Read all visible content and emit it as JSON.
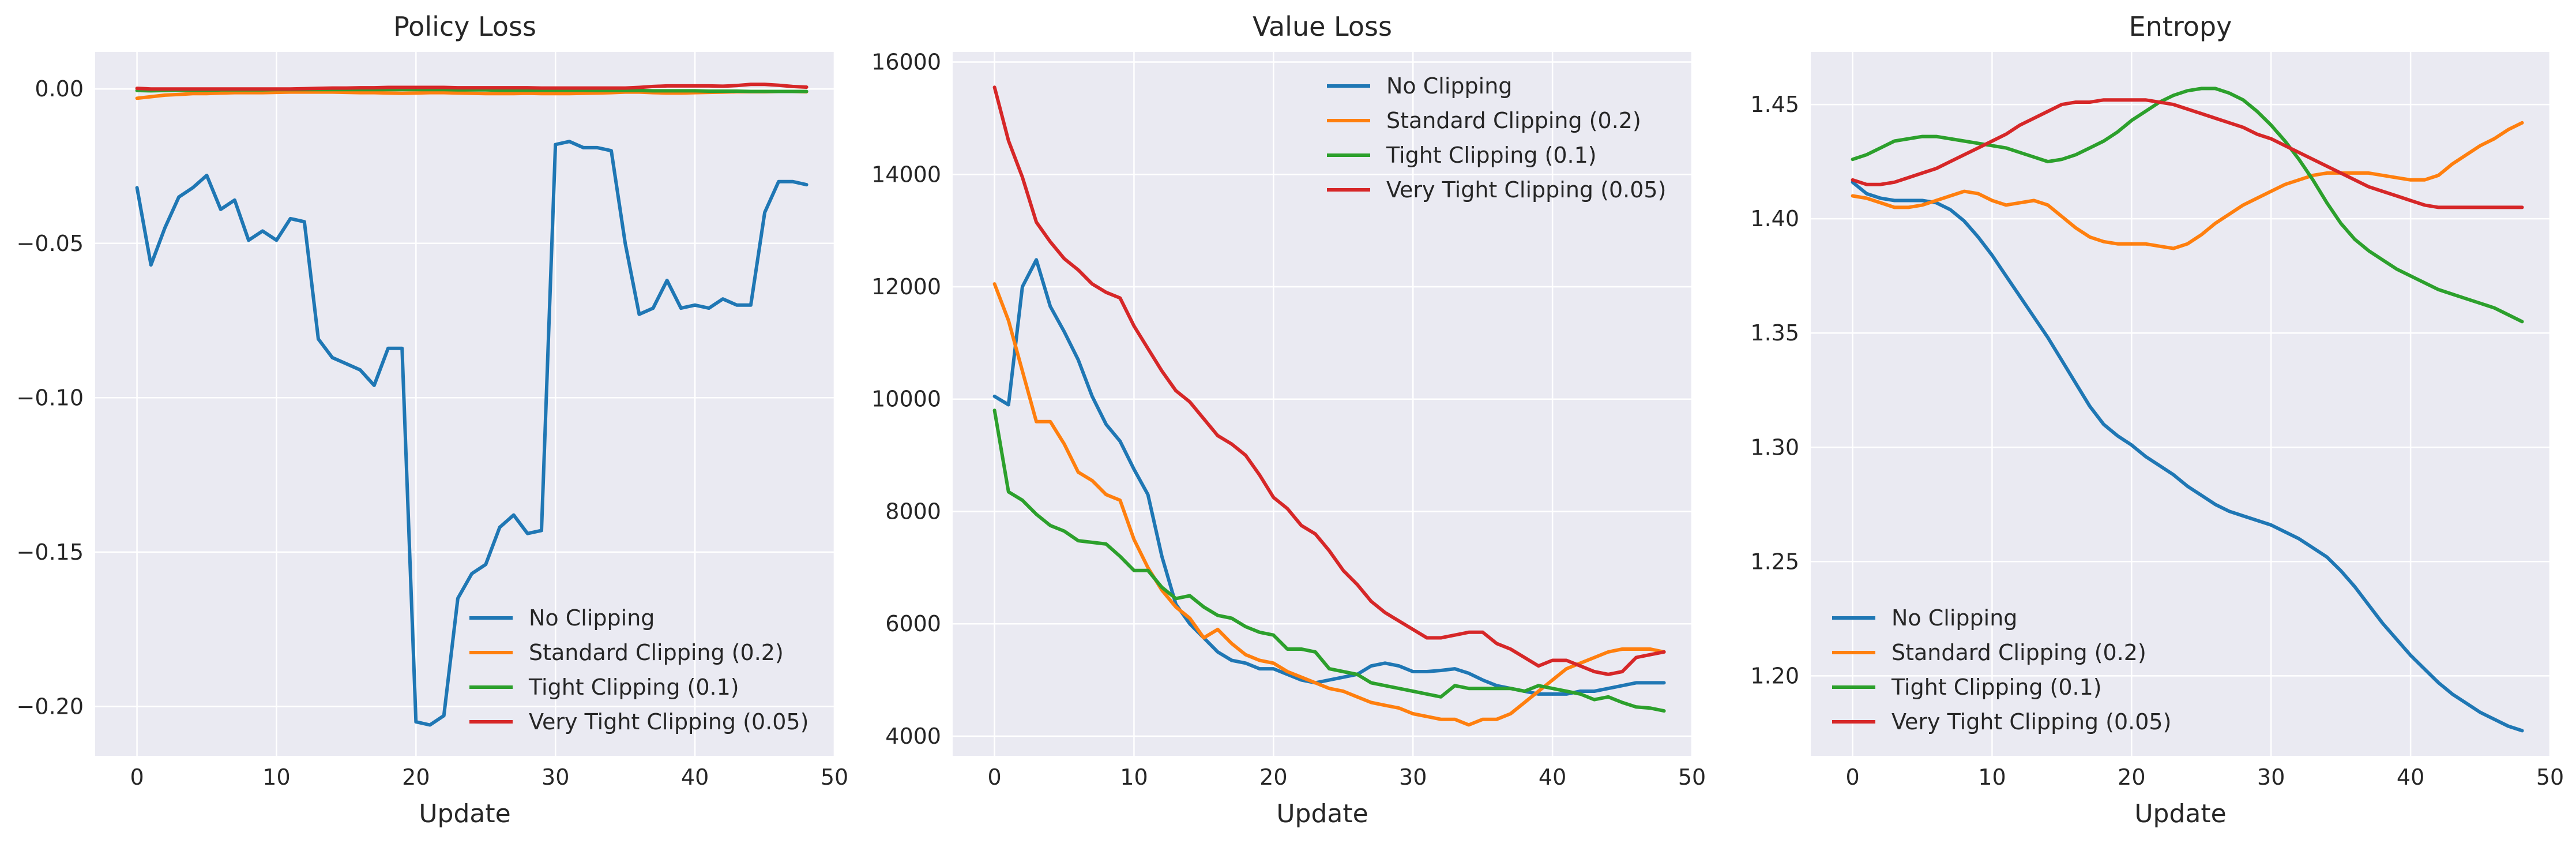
{
  "colors": {
    "plot_bg": "#EAEAF2",
    "grid": "#FFFFFF",
    "No Clipping": "#1F77B4",
    "Standard Clipping (0.2)": "#FF7F0E",
    "Tight Clipping (0.1)": "#2CA02C",
    "Very Tight Clipping (0.05)": "#D62728"
  },
  "chart_data": [
    {
      "type": "line",
      "title": "Policy Loss",
      "xlabel": "Update",
      "ylabel": "",
      "xlim": [
        -3,
        50
      ],
      "ylim": [
        -0.216,
        0.012
      ],
      "xticks": [
        0,
        10,
        20,
        30,
        40,
        50
      ],
      "yticks": [
        -0.2,
        -0.15,
        -0.1,
        -0.05,
        0.0
      ],
      "ytick_labels": [
        "−0.20",
        "−0.15",
        "−0.10",
        "−0.05",
        "0.00"
      ],
      "grid": true,
      "legend_position": "lower right",
      "series": [
        {
          "name": "No Clipping",
          "values": [
            -0.032,
            -0.057,
            -0.045,
            -0.035,
            -0.032,
            -0.028,
            -0.039,
            -0.036,
            -0.049,
            -0.046,
            -0.049,
            -0.042,
            -0.043,
            -0.081,
            -0.087,
            -0.089,
            -0.091,
            -0.096,
            -0.084,
            -0.084,
            -0.205,
            -0.206,
            -0.203,
            -0.165,
            -0.157,
            -0.154,
            -0.142,
            -0.138,
            -0.144,
            -0.143,
            -0.018,
            -0.017,
            -0.019,
            -0.019,
            -0.02,
            -0.05,
            -0.073,
            -0.071,
            -0.062,
            -0.071,
            -0.07,
            -0.071,
            -0.068,
            -0.07,
            -0.07,
            -0.04,
            -0.03,
            -0.03,
            -0.031
          ]
        },
        {
          "name": "Standard Clipping (0.2)",
          "values": [
            -0.003,
            -0.0025,
            -0.002,
            -0.0018,
            -0.0015,
            -0.0015,
            -0.0013,
            -0.0012,
            -0.0012,
            -0.0012,
            -0.0011,
            -0.001,
            -0.001,
            -0.001,
            -0.001,
            -0.0011,
            -0.0012,
            -0.0012,
            -0.0013,
            -0.0014,
            -0.0013,
            -0.0012,
            -0.0012,
            -0.0013,
            -0.0014,
            -0.0015,
            -0.0015,
            -0.0015,
            -0.0014,
            -0.0015,
            -0.0015,
            -0.0015,
            -0.0014,
            -0.0013,
            -0.0012,
            -0.001,
            -0.001,
            -0.0012,
            -0.0013,
            -0.0013,
            -0.0012,
            -0.0011,
            -0.001,
            -0.0009,
            -0.0009,
            -0.0009,
            -0.0008,
            -0.0008,
            -0.0009
          ]
        },
        {
          "name": "Tight Clipping (0.1)",
          "values": [
            -0.0005,
            -0.0006,
            -0.0005,
            -0.0004,
            -0.0004,
            -0.0004,
            -0.0003,
            -0.0003,
            -0.0003,
            -0.0003,
            -0.0002,
            -0.0002,
            -0.0002,
            -0.0002,
            -0.0002,
            -0.0002,
            -0.0002,
            -0.0002,
            -0.0002,
            -0.0002,
            -0.0002,
            -0.0002,
            -0.0002,
            -0.0003,
            -0.0003,
            -0.0003,
            -0.0004,
            -0.0004,
            -0.0004,
            -0.0004,
            -0.0004,
            -0.0004,
            -0.0004,
            -0.0005,
            -0.0005,
            -0.0005,
            -0.0005,
            -0.0006,
            -0.0006,
            -0.0006,
            -0.0006,
            -0.0007,
            -0.0007,
            -0.0007,
            -0.0008,
            -0.0008,
            -0.0008,
            -0.0008,
            -0.0008
          ]
        },
        {
          "name": "Very Tight Clipping (0.05)",
          "values": [
            0.0002,
            0.0,
            0.0,
            0.0,
            0.0,
            0.0,
            0.0,
            0.0,
            0.0,
            0.0,
            0.0,
            0.0,
            0.0001,
            0.0002,
            0.0003,
            0.0003,
            0.0004,
            0.0004,
            0.0005,
            0.0005,
            0.0005,
            0.0005,
            0.0005,
            0.0004,
            0.0004,
            0.0004,
            0.0004,
            0.0004,
            0.0004,
            0.0003,
            0.0003,
            0.0003,
            0.0003,
            0.0003,
            0.0003,
            0.0003,
            0.0005,
            0.0008,
            0.001,
            0.001,
            0.001,
            0.001,
            0.0009,
            0.0011,
            0.0015,
            0.0015,
            0.0012,
            0.0008,
            0.0006
          ]
        }
      ]
    },
    {
      "type": "line",
      "title": "Value Loss",
      "xlabel": "Update",
      "ylabel": "",
      "xlim": [
        -3,
        50
      ],
      "ylim": [
        3650,
        16180
      ],
      "xticks": [
        0,
        10,
        20,
        30,
        40,
        50
      ],
      "yticks": [
        4000,
        6000,
        8000,
        10000,
        12000,
        14000,
        16000
      ],
      "ytick_labels": [
        "4000",
        "6000",
        "8000",
        "10000",
        "12000",
        "14000",
        "16000"
      ],
      "grid": true,
      "legend_position": "upper right",
      "series": [
        {
          "name": "No Clipping",
          "values": [
            10050,
            9900,
            12000,
            12480,
            11650,
            11200,
            10700,
            10050,
            9550,
            9250,
            8750,
            8300,
            7200,
            6350,
            6000,
            5750,
            5500,
            5350,
            5300,
            5200,
            5200,
            5100,
            5000,
            4950,
            5000,
            5050,
            5100,
            5250,
            5300,
            5250,
            5150,
            5150,
            5170,
            5200,
            5120,
            5000,
            4900,
            4850,
            4800,
            4750,
            4750,
            4750,
            4800,
            4800,
            4850,
            4900,
            4950,
            4950,
            4950
          ]
        },
        {
          "name": "Standard Clipping (0.2)",
          "values": [
            12050,
            11400,
            10500,
            9600,
            9600,
            9200,
            8700,
            8550,
            8300,
            8200,
            7500,
            7000,
            6600,
            6300,
            6100,
            5750,
            5900,
            5650,
            5450,
            5350,
            5300,
            5150,
            5050,
            4950,
            4850,
            4800,
            4700,
            4600,
            4550,
            4500,
            4400,
            4350,
            4300,
            4300,
            4200,
            4300,
            4300,
            4400,
            4600,
            4800,
            5000,
            5200,
            5300,
            5400,
            5500,
            5550,
            5550,
            5550,
            5500
          ]
        },
        {
          "name": "Tight Clipping (0.1)",
          "values": [
            9800,
            8350,
            8200,
            7950,
            7750,
            7650,
            7480,
            7450,
            7420,
            7200,
            6950,
            6950,
            6650,
            6450,
            6500,
            6300,
            6150,
            6100,
            5950,
            5850,
            5800,
            5550,
            5550,
            5500,
            5200,
            5150,
            5100,
            4950,
            4900,
            4850,
            4800,
            4750,
            4700,
            4900,
            4850,
            4850,
            4850,
            4850,
            4800,
            4900,
            4850,
            4800,
            4750,
            4650,
            4700,
            4600,
            4520,
            4500,
            4450
          ]
        },
        {
          "name": "Very Tight Clipping (0.05)",
          "values": [
            15550,
            14600,
            13950,
            13150,
            12800,
            12500,
            12300,
            12050,
            11900,
            11800,
            11300,
            10900,
            10500,
            10150,
            9950,
            9650,
            9350,
            9200,
            9000,
            8650,
            8250,
            8050,
            7750,
            7600,
            7300,
            6950,
            6700,
            6400,
            6200,
            6050,
            5900,
            5750,
            5750,
            5800,
            5850,
            5850,
            5650,
            5550,
            5400,
            5250,
            5350,
            5350,
            5250,
            5150,
            5100,
            5150,
            5400,
            5450,
            5500
          ]
        }
      ]
    },
    {
      "type": "line",
      "title": "Entropy",
      "xlabel": "Update",
      "ylabel": "",
      "xlim": [
        -3,
        50
      ],
      "ylim": [
        1.165,
        1.473
      ],
      "xticks": [
        0,
        10,
        20,
        30,
        40,
        50
      ],
      "yticks": [
        1.2,
        1.25,
        1.3,
        1.35,
        1.4,
        1.45
      ],
      "ytick_labels": [
        "1.20",
        "1.25",
        "1.30",
        "1.35",
        "1.40",
        "1.45"
      ],
      "grid": true,
      "legend_position": "lower left",
      "series": [
        {
          "name": "No Clipping",
          "values": [
            1.416,
            1.411,
            1.409,
            1.408,
            1.408,
            1.408,
            1.407,
            1.404,
            1.399,
            1.392,
            1.384,
            1.375,
            1.366,
            1.357,
            1.348,
            1.338,
            1.328,
            1.318,
            1.31,
            1.305,
            1.301,
            1.296,
            1.292,
            1.288,
            1.283,
            1.279,
            1.275,
            1.272,
            1.27,
            1.268,
            1.266,
            1.263,
            1.26,
            1.256,
            1.252,
            1.246,
            1.239,
            1.231,
            1.223,
            1.216,
            1.209,
            1.203,
            1.197,
            1.192,
            1.188,
            1.184,
            1.181,
            1.178,
            1.176
          ]
        },
        {
          "name": "Standard Clipping (0.2)",
          "values": [
            1.41,
            1.409,
            1.407,
            1.405,
            1.405,
            1.406,
            1.408,
            1.41,
            1.412,
            1.411,
            1.408,
            1.406,
            1.407,
            1.408,
            1.406,
            1.401,
            1.396,
            1.392,
            1.39,
            1.389,
            1.389,
            1.389,
            1.388,
            1.387,
            1.389,
            1.393,
            1.398,
            1.402,
            1.406,
            1.409,
            1.412,
            1.415,
            1.417,
            1.419,
            1.42,
            1.42,
            1.42,
            1.42,
            1.419,
            1.418,
            1.417,
            1.417,
            1.419,
            1.424,
            1.428,
            1.432,
            1.435,
            1.439,
            1.442
          ]
        },
        {
          "name": "Tight Clipping (0.1)",
          "values": [
            1.426,
            1.428,
            1.431,
            1.434,
            1.435,
            1.436,
            1.436,
            1.435,
            1.434,
            1.433,
            1.432,
            1.431,
            1.429,
            1.427,
            1.425,
            1.426,
            1.428,
            1.431,
            1.434,
            1.438,
            1.443,
            1.447,
            1.451,
            1.454,
            1.456,
            1.457,
            1.457,
            1.455,
            1.452,
            1.447,
            1.441,
            1.434,
            1.426,
            1.417,
            1.407,
            1.398,
            1.391,
            1.386,
            1.382,
            1.378,
            1.375,
            1.372,
            1.369,
            1.367,
            1.365,
            1.363,
            1.361,
            1.358,
            1.355
          ]
        },
        {
          "name": "Very Tight Clipping (0.05)",
          "values": [
            1.417,
            1.415,
            1.415,
            1.416,
            1.418,
            1.42,
            1.422,
            1.425,
            1.428,
            1.431,
            1.434,
            1.437,
            1.441,
            1.444,
            1.447,
            1.45,
            1.451,
            1.451,
            1.452,
            1.452,
            1.452,
            1.452,
            1.451,
            1.45,
            1.448,
            1.446,
            1.444,
            1.442,
            1.44,
            1.437,
            1.435,
            1.432,
            1.429,
            1.426,
            1.423,
            1.42,
            1.417,
            1.414,
            1.412,
            1.41,
            1.408,
            1.406,
            1.405,
            1.405,
            1.405,
            1.405,
            1.405,
            1.405,
            1.405
          ]
        }
      ]
    }
  ]
}
